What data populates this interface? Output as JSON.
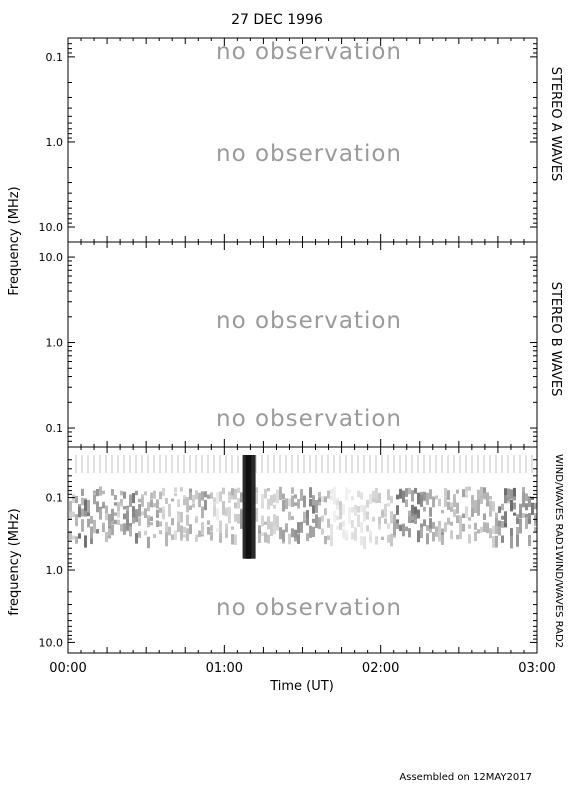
{
  "title": "27 DEC 1996",
  "footer": "Assembled on 12MAY2017",
  "chart_data": {
    "type": "heatmap",
    "title": "27 DEC 1996",
    "xlabel": "Time (UT)",
    "x_ticks": [
      "00:00",
      "01:00",
      "02:00",
      "03:00"
    ],
    "xlim": [
      "00:00",
      "03:00"
    ],
    "panels": [
      {
        "name": "STEREO A WAVES",
        "ylabel": "Frequency (MHz)",
        "y_scale": "log",
        "y_ticks": [
          "0.1",
          "1.0",
          "10.0"
        ],
        "ylim": [
          0.06,
          15
        ],
        "annotations": [
          "no observation",
          "no observation"
        ]
      },
      {
        "name": "STEREO B WAVES",
        "ylabel": "Frequency (MHz)",
        "y_scale": "log",
        "y_ticks": [
          "10.0",
          "1.0",
          "0.1"
        ],
        "ylim": [
          15,
          0.06
        ],
        "annotations": [
          "no observation",
          "no observation"
        ]
      },
      {
        "name": "WIND/WAVES RAD1WIND/WAVES RAD2",
        "ylabel": "frequency (MHz)",
        "y_scale": "log",
        "y_ticks": [
          "0.1",
          "1.0",
          "10.0"
        ],
        "ylim": [
          0.02,
          14
        ],
        "annotations": [
          "no observation"
        ],
        "features": [
          {
            "label": "data gap",
            "start": "01:07",
            "end": "01:12",
            "freq_range_mhz": [
              0.02,
              0.9
            ]
          },
          {
            "label": "emission band",
            "start": "00:00",
            "end": "03:00",
            "freq_range_mhz": [
              0.07,
              0.35
            ]
          }
        ]
      }
    ]
  }
}
